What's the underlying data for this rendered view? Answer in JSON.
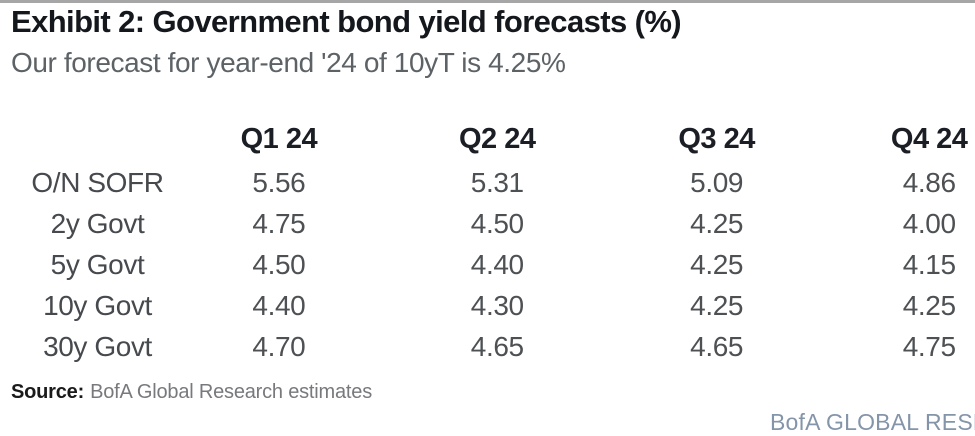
{
  "header": {
    "title": "Exhibit 2: Government bond yield forecasts (%)",
    "subtitle": "Our forecast for year-end '24 of 10yT is 4.25%"
  },
  "table": {
    "columns": [
      "Q1 24",
      "Q2 24",
      "Q3 24",
      "Q4 24"
    ],
    "rows": [
      {
        "label": "O/N SOFR",
        "values": [
          "5.56",
          "5.31",
          "5.09",
          "4.86"
        ]
      },
      {
        "label": "2y Govt",
        "values": [
          "4.75",
          "4.50",
          "4.25",
          "4.00"
        ]
      },
      {
        "label": "5y Govt",
        "values": [
          "4.50",
          "4.40",
          "4.25",
          "4.15"
        ]
      },
      {
        "label": "10y Govt",
        "values": [
          "4.40",
          "4.30",
          "4.25",
          "4.25"
        ]
      },
      {
        "label": "30y Govt",
        "values": [
          "4.70",
          "4.65",
          "4.65",
          "4.75"
        ]
      }
    ]
  },
  "source": {
    "label": "Source:",
    "text": "BofA Global Research estimates"
  },
  "footer": {
    "brand": "BofA GLOBAL RESEARCH"
  },
  "colors": {
    "title": "#14171c",
    "subtitle": "#5c6266",
    "table_header": "#1b1e24",
    "table_value": "#4e5154",
    "footer_brand": "#8495a9",
    "top_rule": "#a6a6a6",
    "background": "#ffffff"
  },
  "chart_data": {
    "type": "table",
    "title": "Exhibit 2: Government bond yield forecasts (%)",
    "subtitle": "Our forecast for year-end '24 of 10yT is 4.25%",
    "columns": [
      "Q1 24",
      "Q2 24",
      "Q3 24",
      "Q4 24"
    ],
    "row_labels": [
      "O/N SOFR",
      "2y Govt",
      "5y Govt",
      "10y Govt",
      "30y Govt"
    ],
    "values": [
      [
        5.56,
        5.31,
        5.09,
        4.86
      ],
      [
        4.75,
        4.5,
        4.25,
        4.0
      ],
      [
        4.5,
        4.4,
        4.25,
        4.15
      ],
      [
        4.4,
        4.3,
        4.25,
        4.25
      ],
      [
        4.7,
        4.65,
        4.65,
        4.75
      ]
    ],
    "unit": "%",
    "source": "BofA Global Research estimates"
  }
}
